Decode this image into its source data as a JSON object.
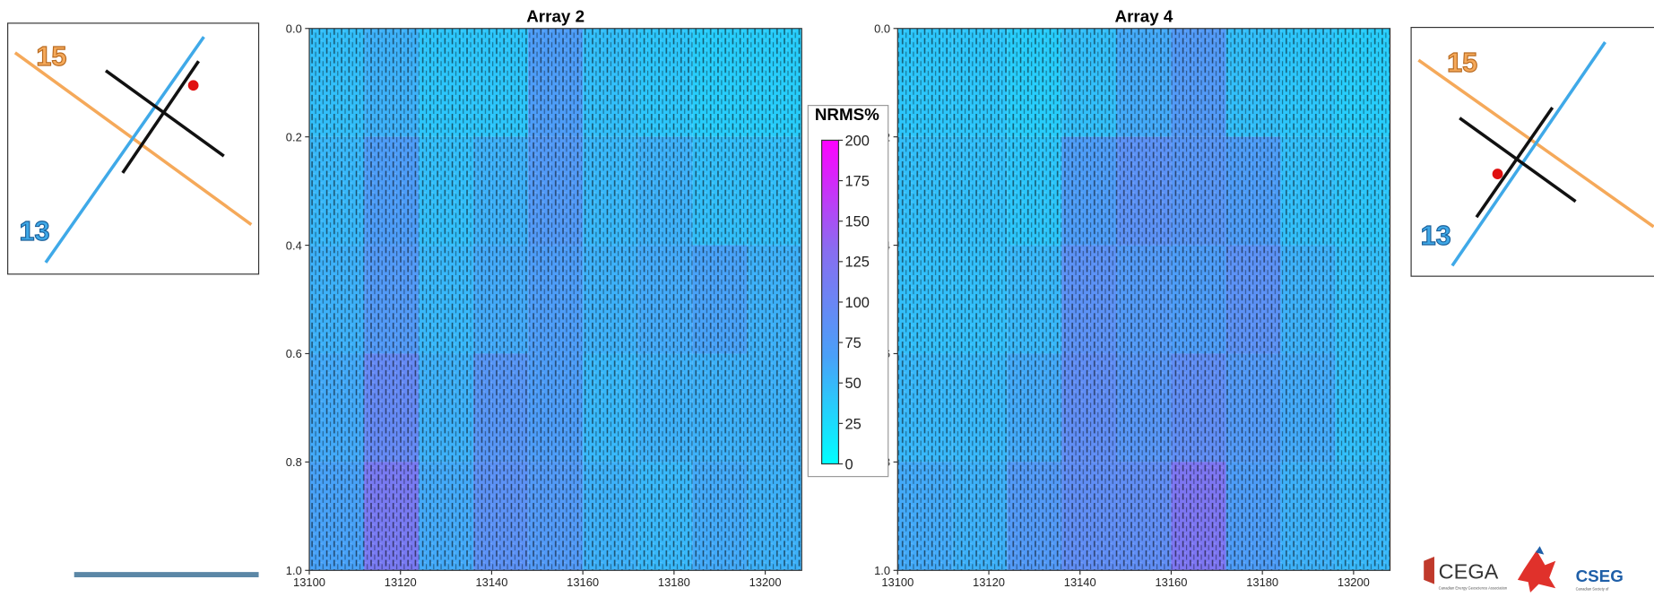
{
  "chart_data": [
    {
      "type": "heatmap",
      "title": "Array 2",
      "x": [
        13106,
        13118,
        13130,
        13142,
        13154,
        13166,
        13178,
        13190,
        13202
      ],
      "y": [
        0.1,
        0.3,
        0.5,
        0.7,
        0.9
      ],
      "values": [
        [
          45,
          55,
          40,
          40,
          70,
          45,
          40,
          35,
          35
        ],
        [
          50,
          70,
          45,
          55,
          75,
          50,
          55,
          45,
          45
        ],
        [
          55,
          75,
          50,
          60,
          70,
          55,
          60,
          65,
          55
        ],
        [
          60,
          95,
          55,
          80,
          70,
          50,
          55,
          55,
          55
        ],
        [
          65,
          115,
          60,
          85,
          75,
          55,
          50,
          60,
          55
        ]
      ],
      "xlim": [
        13100,
        13208
      ],
      "xticks": [
        13100,
        13120,
        13140,
        13160,
        13180,
        13200
      ],
      "ylim": [
        1.0,
        0.0
      ],
      "yticks": [
        {
          "value": 0,
          "label": "0.0"
        },
        0.2,
        0.4,
        0.6,
        0.8,
        {
          "value": 1,
          "label": "1.0"
        }
      ]
    },
    {
      "type": "heatmap",
      "title": "Array 4",
      "x": [
        13106,
        13118,
        13130,
        13142,
        13154,
        13166,
        13178,
        13190,
        13202
      ],
      "y": [
        0.1,
        0.3,
        0.5,
        0.7,
        0.9
      ],
      "values": [
        [
          40,
          40,
          35,
          45,
          60,
          75,
          45,
          40,
          35
        ],
        [
          45,
          45,
          40,
          70,
          85,
          80,
          70,
          45,
          40
        ],
        [
          45,
          45,
          50,
          85,
          75,
          70,
          85,
          55,
          45
        ],
        [
          50,
          50,
          60,
          90,
          80,
          90,
          75,
          60,
          45
        ],
        [
          60,
          55,
          75,
          90,
          90,
          120,
          70,
          55,
          50
        ]
      ],
      "xlim": [
        13100,
        13208
      ],
      "xticks": [
        13100,
        13120,
        13140,
        13160,
        13180,
        13200
      ],
      "ylim": [
        1.0,
        0.0
      ],
      "yticks": [
        {
          "value": 0,
          "label": "0.0"
        },
        0.2,
        0.4,
        0.6,
        0.8,
        {
          "value": 1,
          "label": "1.0"
        }
      ]
    }
  ],
  "colorbar": {
    "title": "NRMS%",
    "lim": [
      0,
      200
    ],
    "ticks": [
      0,
      25,
      50,
      75,
      100,
      125,
      150,
      175,
      200
    ],
    "colormap": [
      "#00ffff",
      "#4aa0f8",
      "#8a6cf0",
      "#ff00ff"
    ]
  },
  "insets": [
    {
      "labels": [
        "15",
        "13"
      ]
    },
    {
      "labels": [
        "15",
        "13"
      ]
    }
  ],
  "logos": {
    "cega": "CEGA",
    "cega_sub": "Canadian Energy Geoscience Association",
    "cseg": "CSEG",
    "cseg_sub": "Canadian Society of"
  }
}
